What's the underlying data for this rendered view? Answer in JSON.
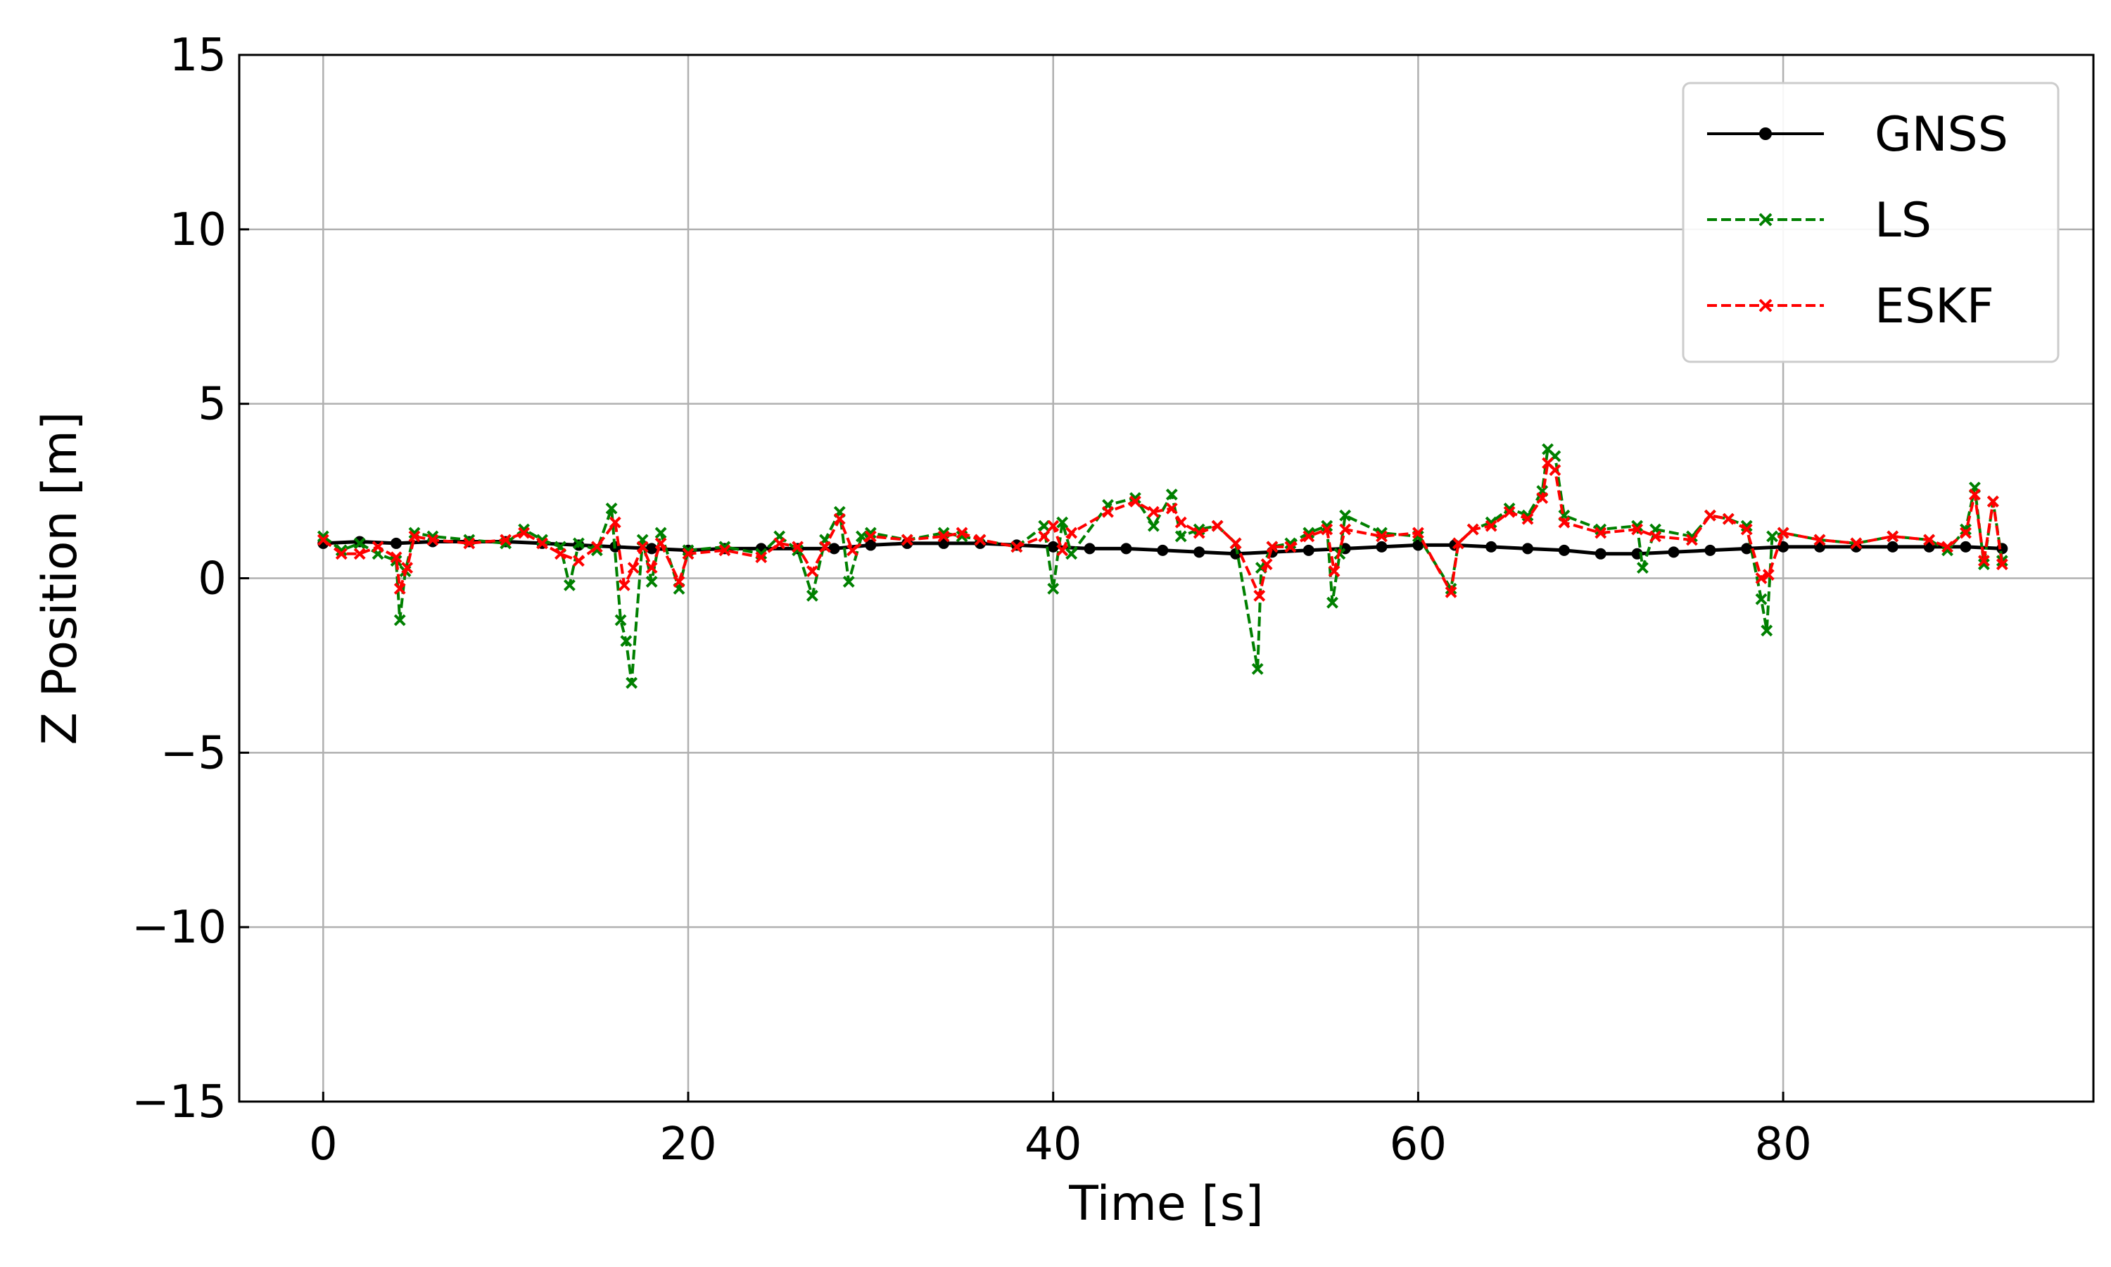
{
  "chart_data": {
    "type": "line",
    "title": "",
    "xlabel": "Time [s]",
    "ylabel": "Z Position [m]",
    "xlim": [
      -4.6,
      97
    ],
    "ylim": [
      -15,
      15
    ],
    "xticks": [
      0,
      20,
      40,
      60,
      80
    ],
    "yticks": [
      -15,
      -10,
      -5,
      0,
      5,
      10,
      15
    ],
    "xtick_labels": [
      "0",
      "20",
      "40",
      "60",
      "80"
    ],
    "ytick_labels": [
      "−15",
      "−10",
      "−5",
      "0",
      "5",
      "10",
      "15"
    ],
    "grid": true,
    "legend_position": "top-right",
    "series": [
      {
        "name": "GNSS",
        "color": "#000000",
        "linestyle": "solid",
        "marker": "circle",
        "x": [
          0,
          2,
          4,
          6,
          8,
          10,
          12,
          14,
          16,
          18,
          20,
          22,
          24,
          26,
          28,
          30,
          32,
          34,
          36,
          38,
          40,
          42,
          44,
          46,
          48,
          50,
          52,
          54,
          56,
          58,
          60,
          62,
          64,
          66,
          68,
          70,
          72,
          74,
          76,
          78,
          80,
          82,
          84,
          86,
          88,
          90,
          92
        ],
        "y": [
          1.0,
          1.05,
          1.0,
          1.05,
          1.05,
          1.05,
          1.0,
          0.95,
          0.9,
          0.85,
          0.8,
          0.85,
          0.85,
          0.85,
          0.85,
          0.95,
          1.0,
          1.0,
          1.0,
          0.95,
          0.9,
          0.85,
          0.85,
          0.8,
          0.75,
          0.7,
          0.75,
          0.8,
          0.85,
          0.9,
          0.95,
          0.95,
          0.9,
          0.85,
          0.8,
          0.7,
          0.7,
          0.75,
          0.8,
          0.85,
          0.9,
          0.9,
          0.9,
          0.9,
          0.9,
          0.9,
          0.85
        ]
      },
      {
        "name": "LS",
        "color": "#008000",
        "linestyle": "dashed",
        "marker": "x",
        "x": [
          0,
          1,
          2,
          3,
          4,
          4.2,
          4.5,
          5,
          6,
          8,
          10,
          11,
          12,
          13,
          13.5,
          14,
          15,
          15.8,
          16.3,
          16.6,
          16.9,
          17.5,
          18,
          18.5,
          19.5,
          20,
          22,
          24,
          25,
          26,
          26.8,
          27.5,
          28.3,
          28.8,
          29.5,
          30,
          32,
          34,
          35,
          36,
          38,
          39.5,
          40,
          40.5,
          41,
          43,
          44.5,
          45.5,
          46.5,
          47,
          48,
          49,
          50,
          51.2,
          51.4,
          52,
          53,
          54,
          55,
          55.3,
          55.7,
          56,
          58,
          60,
          61.8,
          62.2,
          63,
          64,
          65,
          66,
          66.8,
          67.1,
          67.5,
          68,
          70,
          72,
          72.3,
          73,
          75,
          76,
          77,
          78,
          78.8,
          79.1,
          79.4,
          80,
          82,
          84,
          86,
          88,
          89,
          90,
          90.5,
          91,
          91.5,
          92
        ],
        "y": [
          1.2,
          0.8,
          1.0,
          0.7,
          0.5,
          -1.2,
          0.2,
          1.3,
          1.2,
          1.1,
          1.0,
          1.4,
          1.1,
          0.9,
          -0.2,
          1.0,
          0.8,
          2.0,
          -1.2,
          -1.8,
          -3.0,
          1.1,
          -0.1,
          1.3,
          -0.3,
          0.8,
          0.9,
          0.7,
          1.2,
          0.8,
          -0.5,
          1.1,
          1.9,
          -0.1,
          1.2,
          1.3,
          1.1,
          1.3,
          1.2,
          1.1,
          0.9,
          1.5,
          -0.3,
          1.6,
          0.7,
          2.1,
          2.3,
          1.5,
          2.4,
          1.2,
          1.4,
          1.5,
          1.0,
          -2.6,
          0.3,
          0.9,
          1.0,
          1.3,
          1.5,
          -0.7,
          0.7,
          1.8,
          1.3,
          1.2,
          -0.3,
          1.0,
          1.4,
          1.6,
          2.0,
          1.8,
          2.5,
          3.7,
          3.5,
          1.8,
          1.4,
          1.5,
          0.3,
          1.4,
          1.2,
          1.8,
          1.7,
          1.5,
          -0.6,
          -1.5,
          1.2,
          1.3,
          1.1,
          1.0,
          1.2,
          1.1,
          0.8,
          1.4,
          2.6,
          0.4,
          2.2,
          0.5
        ]
      },
      {
        "name": "ESKF",
        "color": "#ff0000",
        "linestyle": "dashed",
        "marker": "x",
        "x": [
          0,
          1,
          2,
          3,
          4,
          4.2,
          4.6,
          5,
          6,
          8,
          10,
          11,
          12,
          13,
          14,
          15,
          16,
          16.5,
          17,
          17.5,
          18,
          18.5,
          19.5,
          20,
          22,
          24,
          25,
          26,
          26.8,
          27.5,
          28.3,
          29,
          30,
          32,
          34,
          35,
          36,
          38,
          39.5,
          40,
          40.5,
          41,
          43,
          44.5,
          45.5,
          46.5,
          47,
          48,
          49,
          50,
          51.3,
          51.7,
          52,
          53,
          54,
          55,
          55.4,
          56,
          58,
          60,
          61.8,
          62.2,
          63,
          64,
          65,
          66,
          66.8,
          67.1,
          67.5,
          68,
          70,
          72,
          73,
          75,
          76,
          77,
          78,
          78.8,
          79.2,
          80,
          82,
          84,
          86,
          88,
          89,
          90,
          90.5,
          91,
          91.5,
          92
        ],
        "y": [
          1.1,
          0.7,
          0.7,
          0.9,
          0.6,
          -0.3,
          0.3,
          1.2,
          1.1,
          1.0,
          1.1,
          1.3,
          1.0,
          0.7,
          0.5,
          0.9,
          1.6,
          -0.2,
          0.3,
          0.9,
          0.3,
          1.0,
          -0.1,
          0.7,
          0.8,
          0.6,
          1.0,
          0.9,
          0.2,
          0.9,
          1.7,
          0.8,
          1.2,
          1.1,
          1.2,
          1.3,
          1.1,
          0.9,
          1.2,
          1.5,
          0.8,
          1.3,
          1.9,
          2.2,
          1.9,
          2.0,
          1.6,
          1.3,
          1.5,
          1.0,
          -0.5,
          0.4,
          0.9,
          0.9,
          1.2,
          1.4,
          0.2,
          1.4,
          1.2,
          1.3,
          -0.4,
          1.0,
          1.4,
          1.5,
          1.9,
          1.7,
          2.3,
          3.3,
          3.1,
          1.6,
          1.3,
          1.4,
          1.2,
          1.1,
          1.8,
          1.7,
          1.4,
          0.0,
          0.1,
          1.3,
          1.1,
          1.0,
          1.2,
          1.1,
          0.9,
          1.3,
          2.4,
          0.5,
          2.2,
          0.4
        ]
      }
    ]
  }
}
